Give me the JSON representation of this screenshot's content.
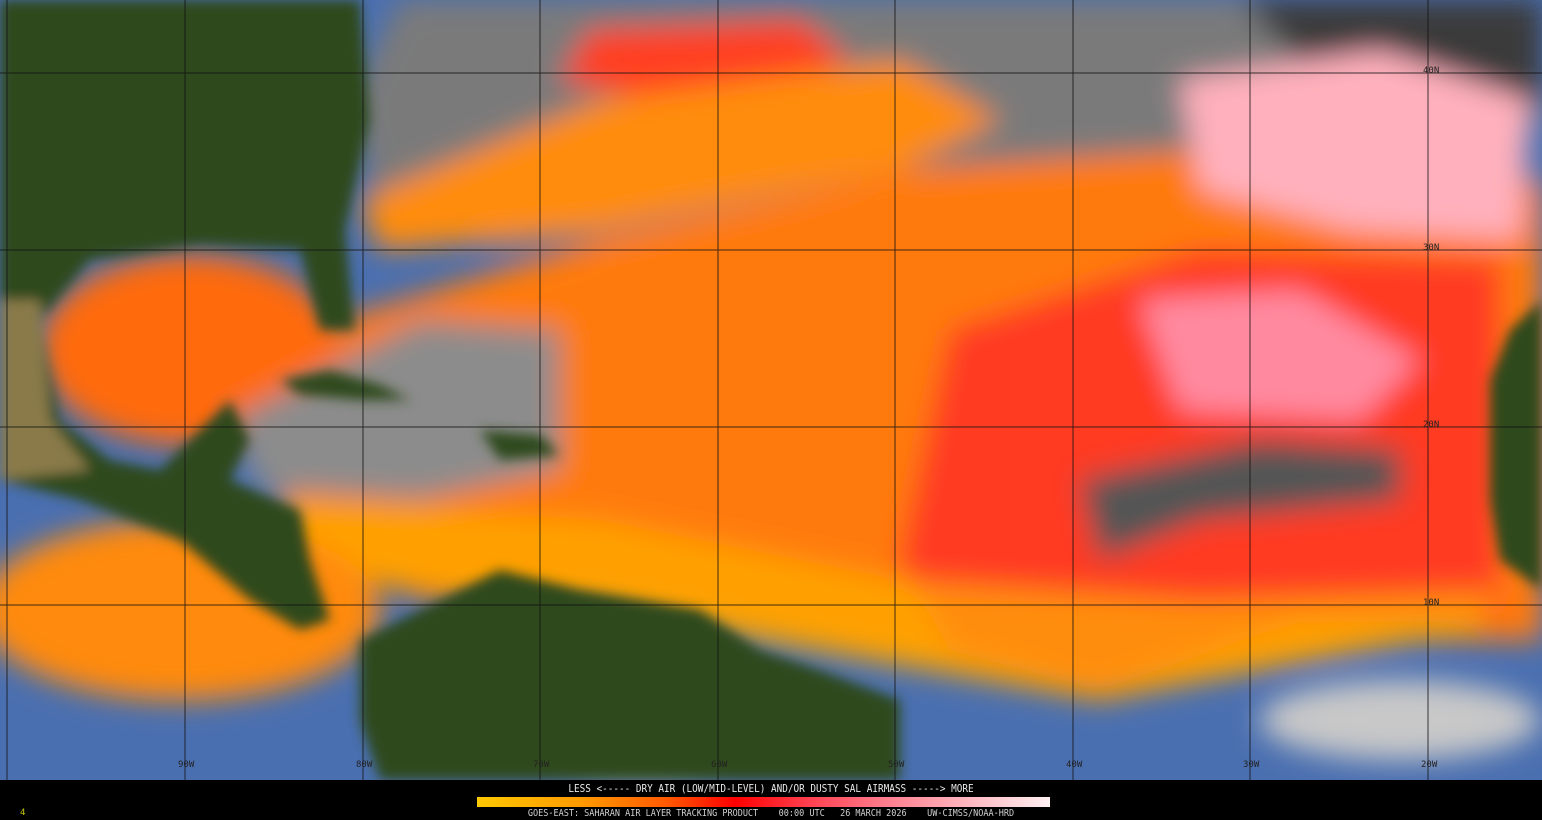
{
  "legend": {
    "title": "LESS <----- DRY AIR (LOW/MID-LEVEL) AND/OR DUSTY SAL AIRMASS -----> MORE",
    "colors": [
      "#ffc800",
      "#ff9a00",
      "#ff5a00",
      "#ff0000",
      "#ff4050",
      "#ff8090",
      "#ffc0c8",
      "#fff0f2"
    ]
  },
  "footer": {
    "product": "GOES-EAST: SAHARAN AIR LAYER TRACKING PRODUCT",
    "time": "00:00 UTC",
    "date": "26 MARCH 2026",
    "credit": "UW-CIMSS/NOAA-HRD",
    "frame": "4"
  },
  "grid": {
    "latitudes": [
      "40N",
      "30N",
      "20N",
      "10N"
    ],
    "longitudes": [
      "90W",
      "80W",
      "70W",
      "60W",
      "50W",
      "40W",
      "30W",
      "20W"
    ]
  },
  "colors": {
    "land": "#2e4a1a",
    "ocean": "#4a70b0",
    "cloud": "#9a9a9a",
    "dry_cloud": "#3a3a3a",
    "sal_low": "#ffc800",
    "sal_high": "#ffc0c8"
  }
}
